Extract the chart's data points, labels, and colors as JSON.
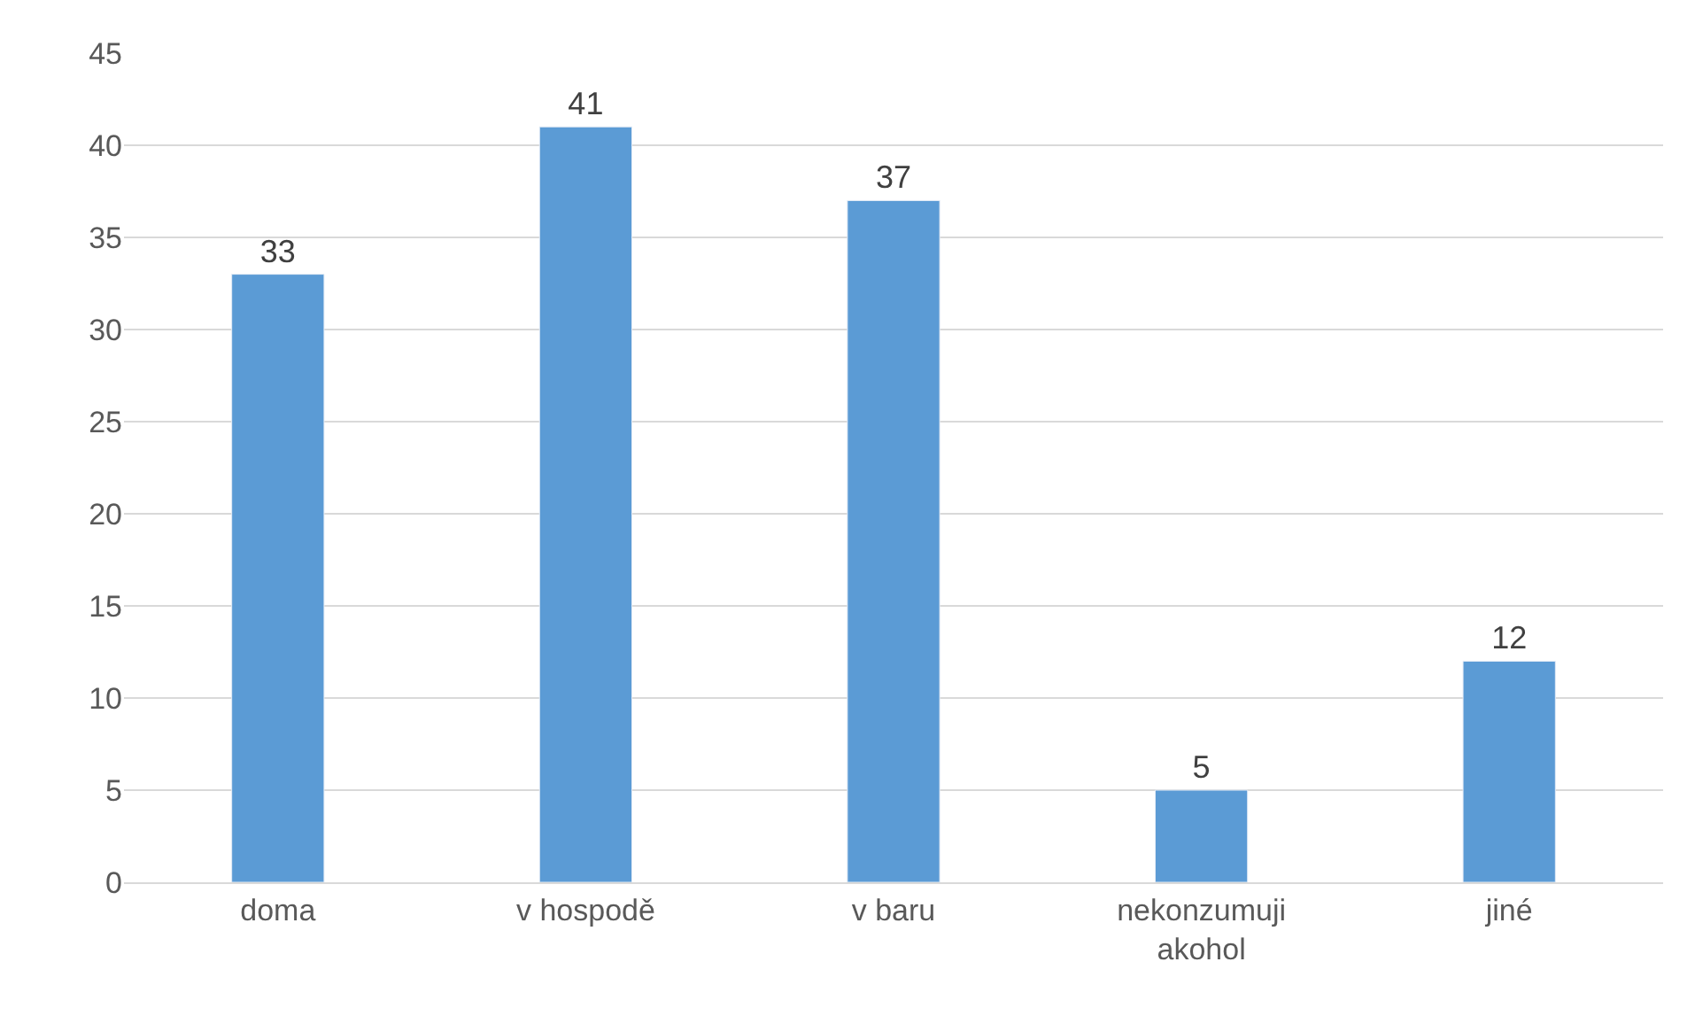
{
  "chart_data": {
    "type": "bar",
    "categories": [
      "doma",
      "v hospodě",
      "v baru",
      "nekonzumuji akohol",
      "jiné"
    ],
    "values": [
      33,
      41,
      37,
      5,
      12
    ],
    "color": "#5b9bd5",
    "ylim": [
      0,
      45
    ],
    "yticks": [
      0,
      5,
      10,
      15,
      20,
      25,
      30,
      35,
      40,
      45
    ],
    "grid": "y",
    "data_labels": true,
    "legend": false
  }
}
